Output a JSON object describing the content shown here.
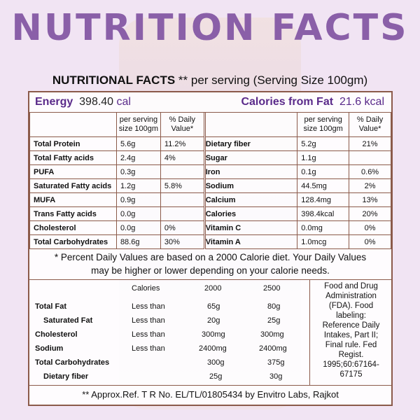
{
  "page_title": "NUTRITION FACTS",
  "subtitle": {
    "bold": "NUTRITIONAL FACTS",
    "rest": " ** per serving (Serving Size 100gm)"
  },
  "energy": {
    "label": "Energy",
    "value": "398.40",
    "unit": "cal"
  },
  "fat_calories": {
    "label": "Calories from Fat",
    "value": "21.6 kcal"
  },
  "table_header": {
    "per_serving": "per serving",
    "size": "size 100gm",
    "daily": "% Daily",
    "value": "Value*"
  },
  "left_rows": [
    {
      "name": "Total Protein",
      "amount": "5.6g",
      "dv": "11.2%"
    },
    {
      "name": "Total Fatty acids",
      "amount": "2.4g",
      "dv": "4%"
    },
    {
      "name": "PUFA",
      "amount": "0.3g",
      "dv": ""
    },
    {
      "name": "Saturated Fatty acids",
      "amount": "1.2g",
      "dv": "5.8%"
    },
    {
      "name": "MUFA",
      "amount": "0.9g",
      "dv": ""
    },
    {
      "name": "Trans Fatty acids",
      "amount": "0.0g",
      "dv": ""
    },
    {
      "name": "Cholesterol",
      "amount": "0.0g",
      "dv": "0%"
    },
    {
      "name": "Total Carbohydrates",
      "amount": "88.6g",
      "dv": "30%"
    }
  ],
  "right_rows": [
    {
      "name": "Dietary fiber",
      "amount": "5.2g",
      "dv": "21%"
    },
    {
      "name": "Sugar",
      "amount": "1.1g",
      "dv": ""
    },
    {
      "name": "Iron",
      "amount": "0.1g",
      "dv": "0.6%"
    },
    {
      "name": "Sodium",
      "amount": "44.5mg",
      "dv": "2%"
    },
    {
      "name": "Calcium",
      "amount": "128.4mg",
      "dv": "13%"
    },
    {
      "name": "Calories",
      "amount": "398.4kcal",
      "dv": "20%"
    },
    {
      "name": "Vitamin C",
      "amount": "0.0mg",
      "dv": "0%"
    },
    {
      "name": "Vitamin A",
      "amount": "1.0mcg",
      "dv": "0%"
    }
  ],
  "note": {
    "line1": "* Percent Daily Values are based on a 2000 Calorie diet. Your Daily Values",
    "line2": "may be higher or lower depending on your calorie needs."
  },
  "guide": {
    "header": {
      "calories": "Calories",
      "c2000": "2000",
      "c2500": "2500"
    },
    "rows": [
      {
        "label": "Total Fat",
        "cond": "Less than",
        "v2000": "65g",
        "v2500": "80g"
      },
      {
        "label": "Saturated Fat",
        "cond": "Less than",
        "v2000": "20g",
        "v2500": "25g"
      },
      {
        "label": "Cholesterol",
        "cond": "Less than",
        "v2000": "300mg",
        "v2500": "300mg"
      },
      {
        "label": "Sodium",
        "cond": "Less than",
        "v2000": "2400mg",
        "v2500": "2400mg"
      },
      {
        "label": "Total Carbohydrates",
        "cond": "",
        "v2000": "300g",
        "v2500": "375g"
      },
      {
        "label": "Dietary fiber",
        "cond": "",
        "v2000": "25g",
        "v2500": "30g"
      }
    ]
  },
  "fda_lines": [
    "Food and Drug",
    "Administration",
    "(FDA). Food",
    "labeling:",
    "Reference Daily",
    "Intakes, Part II;",
    "Final rule. Fed",
    "Regist.",
    "1995;60:67164-",
    "67175"
  ],
  "footer": "** Approx.Ref. T R No. EL/TL/01805434 by Envitro Labs, Rajkot",
  "colors": {
    "title": "#8a5fa8",
    "accent": "#5a2a8a",
    "border": "#8b5a4a",
    "background": "#f1e4f3"
  }
}
